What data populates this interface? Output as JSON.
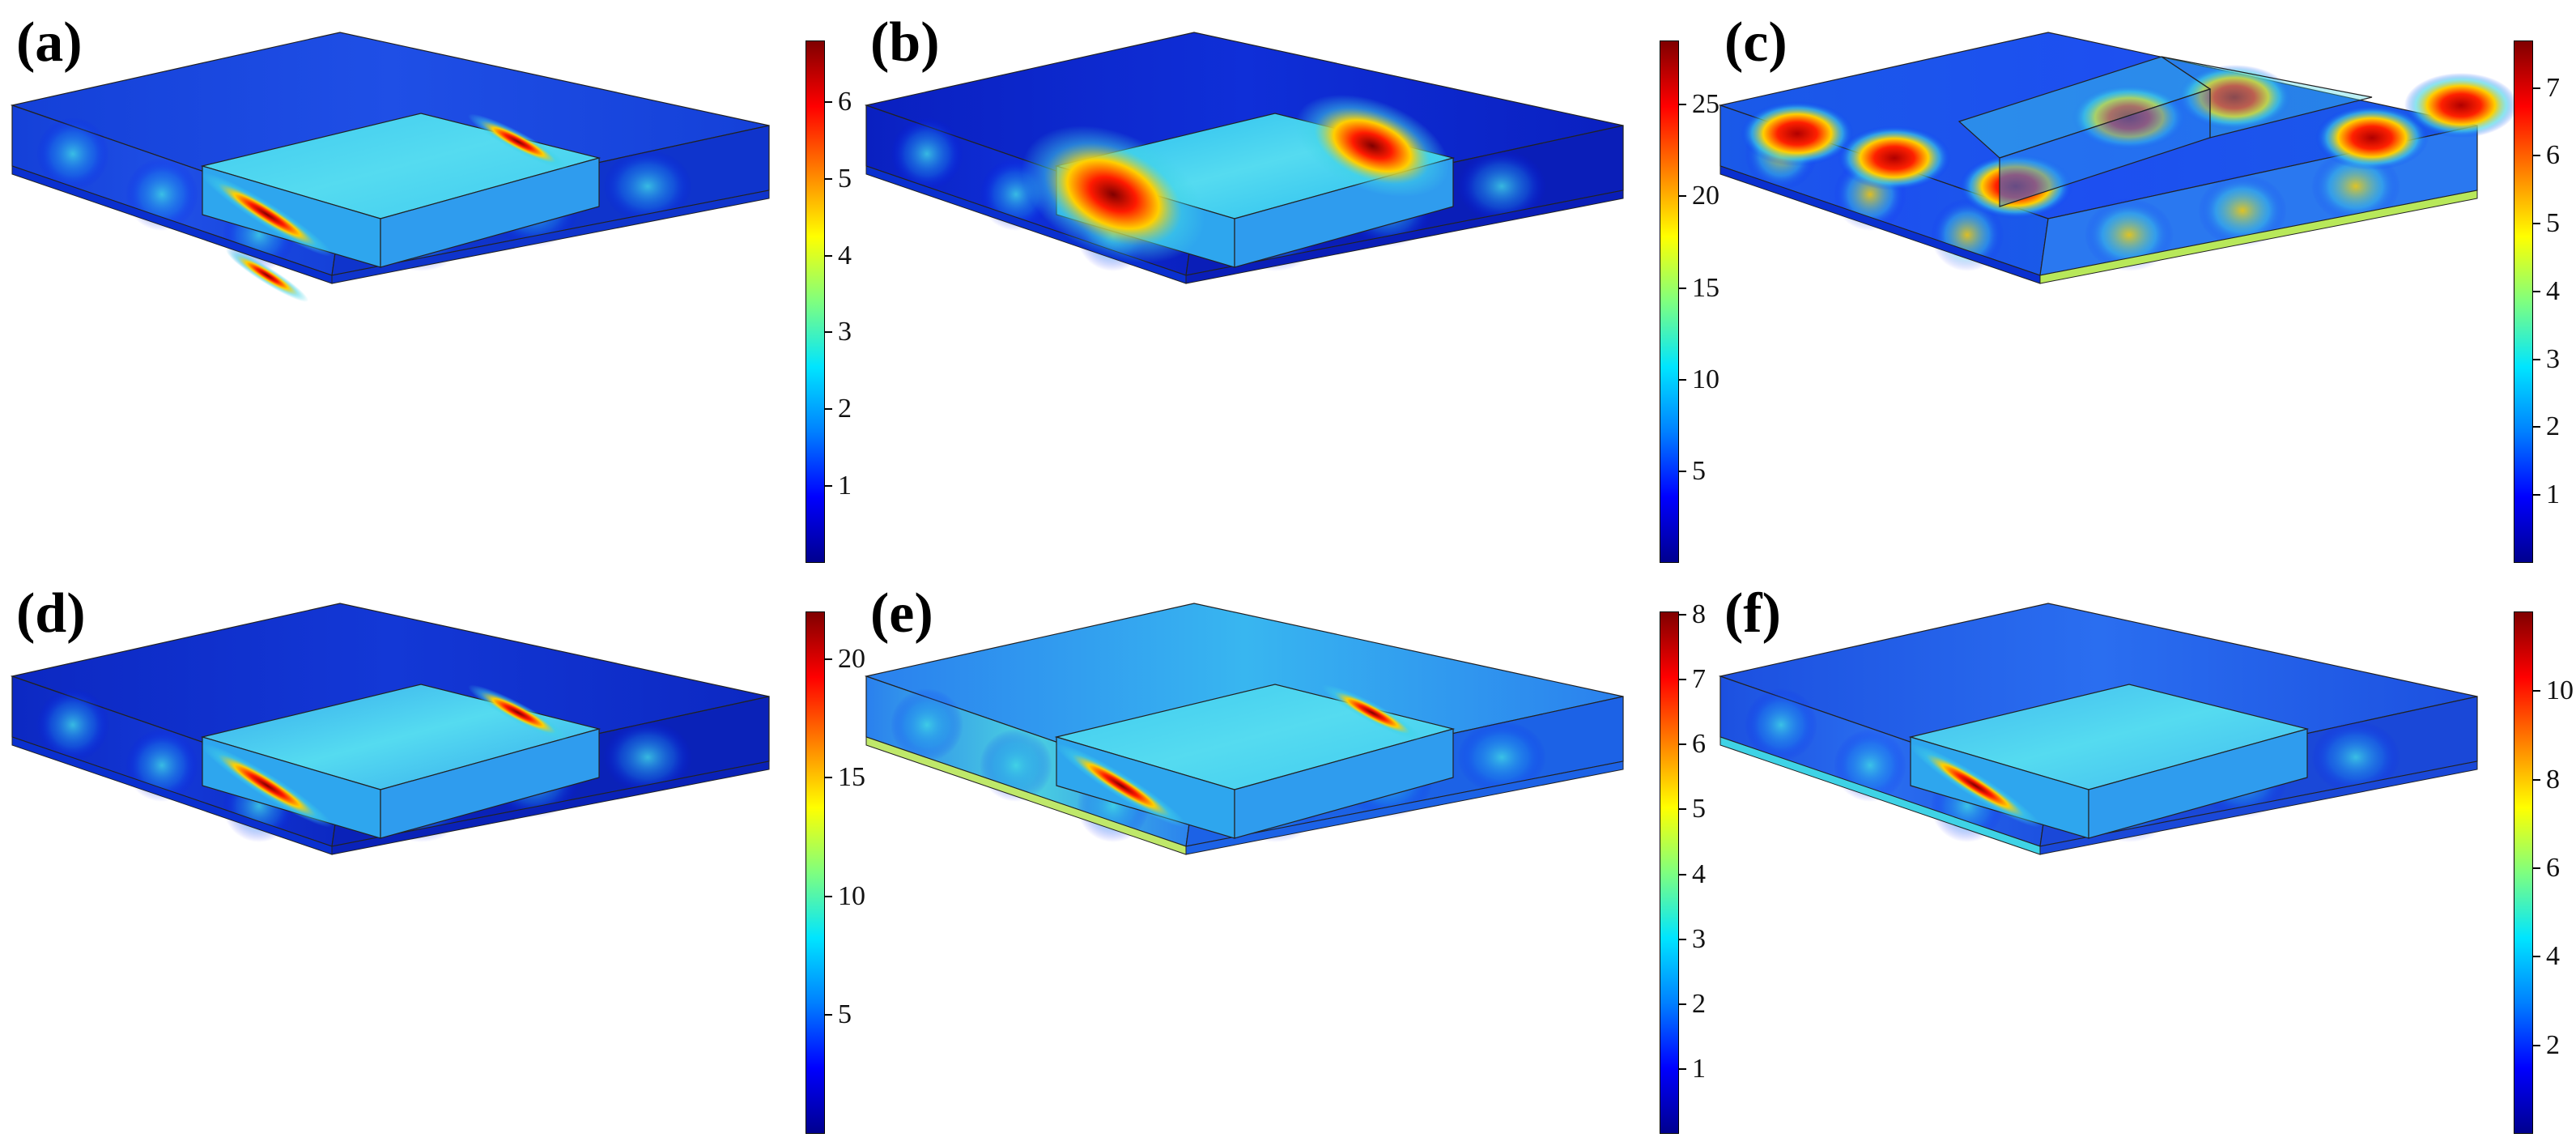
{
  "figure": {
    "panels": [
      {
        "id": "a",
        "label": "(a)",
        "pattern": "a",
        "colorbar": {
          "ticks": [
            "1",
            "2",
            "3",
            "4",
            "5",
            "6"
          ],
          "values": [
            1,
            2,
            3,
            4,
            5,
            6
          ],
          "max": 6.8
        }
      },
      {
        "id": "b",
        "label": "(b)",
        "pattern": "b",
        "colorbar": {
          "ticks": [
            "5",
            "10",
            "15",
            "20",
            "25"
          ],
          "values": [
            5,
            10,
            15,
            20,
            25
          ],
          "max": 28.5
        }
      },
      {
        "id": "c",
        "label": "(c)",
        "pattern": "c",
        "colorbar": {
          "ticks": [
            "1",
            "2",
            "3",
            "4",
            "5",
            "6",
            "7"
          ],
          "values": [
            1,
            2,
            3,
            4,
            5,
            6,
            7
          ],
          "max": 7.7
        }
      },
      {
        "id": "d",
        "label": "(d)",
        "pattern": "d",
        "colorbar": {
          "ticks": [
            "5",
            "10",
            "15",
            "20"
          ],
          "values": [
            5,
            10,
            15,
            20
          ],
          "max": 22
        }
      },
      {
        "id": "e",
        "label": "(e)",
        "pattern": "e",
        "colorbar": {
          "ticks": [
            "1",
            "2",
            "3",
            "4",
            "5",
            "6",
            "7",
            "8"
          ],
          "values": [
            1,
            2,
            3,
            4,
            5,
            6,
            7,
            8
          ],
          "max": 8.05
        }
      },
      {
        "id": "f",
        "label": "(f)",
        "pattern": "f",
        "colorbar": {
          "ticks": [
            "2",
            "4",
            "6",
            "8",
            "10"
          ],
          "values": [
            2,
            4,
            6,
            8,
            10
          ],
          "max": 11.8
        }
      }
    ],
    "colors": {
      "low": "#00008f",
      "mid": "#3fd3e6",
      "high": "#8b0000"
    }
  }
}
